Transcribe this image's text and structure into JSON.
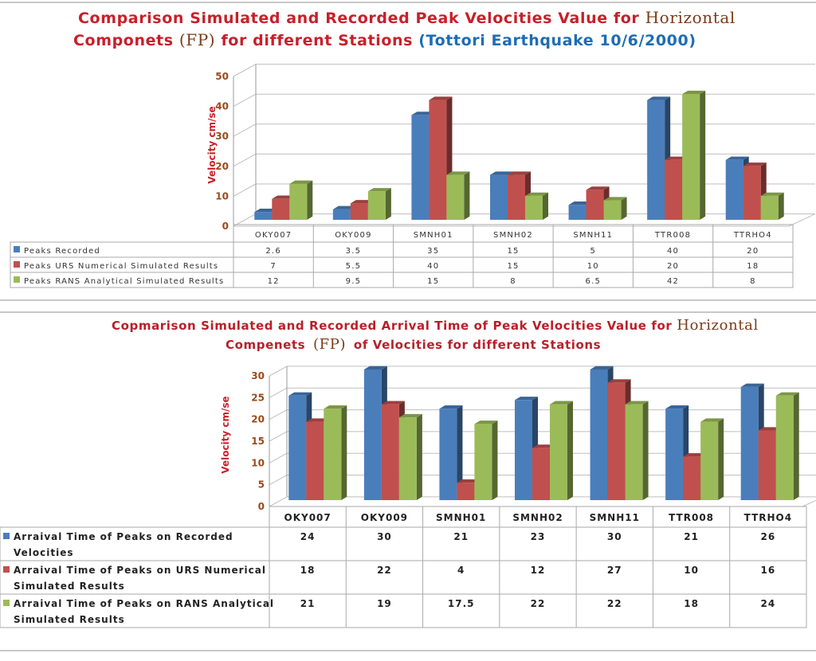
{
  "top_chart": {
    "title_line1_red": "Comparison Simulated and Recorded Peak Velocities Value for",
    "title_line1_serif": "Horizontal",
    "title_line2_red_a": "Componets",
    "title_line2_serif": "(FP)",
    "title_line2_red_b": "for different  Stations",
    "title_line2_blue": "(Tottori Earthquake 10/6/2000)"
  },
  "bottom_chart": {
    "title_line1_red": "Copmarison Simulated and Recorded Arrival Time of Peak Velocities Value for",
    "title_line1_serif": "Horizontal",
    "title_line2_red_a": "Compenets",
    "title_line2_serif": "(FP)",
    "title_line2_red_b": "of Velocities for different Stations"
  },
  "colors": {
    "recorded": "#4a7ebb",
    "urs": "#c0504d",
    "rans": "#9bbb59"
  },
  "chart_data": [
    {
      "type": "bar",
      "title": "Comparison Simulated and Recorded Peak Velocities Value for Horizontal Componets (FP) for different Stations (Tottori Earthquake 10/6/2000)",
      "xlabel": "",
      "ylabel": "Velocity  cm/se",
      "ylim": [
        0,
        50
      ],
      "yticks": [
        "0",
        "10",
        "20",
        "30",
        "40",
        "50"
      ],
      "grid": true,
      "legend": "data-table-left",
      "categories": [
        "OKY007",
        "OKY009",
        "SMNH01",
        "SMNH02",
        "SMNH11",
        "TTR008",
        "TTRHO4"
      ],
      "series": [
        {
          "name": "Peaks Recorded",
          "values": [
            2.6,
            3.5,
            35,
            15,
            5,
            40,
            20
          ],
          "labels": [
            "2.6",
            "3.5",
            "35",
            "15",
            "5",
            "40",
            "20"
          ]
        },
        {
          "name": "Peaks URS Numerical Simulated Results",
          "values": [
            7,
            5.5,
            40,
            15,
            10,
            20,
            18
          ],
          "labels": [
            "7",
            "5.5",
            "40",
            "15",
            "10",
            "20",
            "18"
          ]
        },
        {
          "name": "Peaks RANS Analytical Simulated Results",
          "values": [
            12,
            9.5,
            15,
            8,
            6.5,
            42,
            8
          ],
          "labels": [
            "12",
            "9.5",
            "15",
            "8",
            "6.5",
            "42",
            "8"
          ]
        }
      ]
    },
    {
      "type": "bar",
      "title": "Copmarison Simulated and Recorded Arrival Time of Peak Velocities Value for Horizontal Compenets (FP) of Velocities for different Stations",
      "xlabel": "",
      "ylabel": "Velocity cm/se",
      "ylim": [
        0,
        30
      ],
      "yticks": [
        "0",
        "5",
        "10",
        "15",
        "20",
        "25",
        "30"
      ],
      "grid": true,
      "legend": "data-table-left",
      "categories": [
        "OKY007",
        "OKY009",
        "SMNH01",
        "SMNH02",
        "SMNH11",
        "TTR008",
        "TTRHO4"
      ],
      "series": [
        {
          "name": "Arraival Time  of Peaks on Recorded Velocities",
          "name_lines": [
            "Arraival Time  of Peaks on Recorded",
            "Velocities"
          ],
          "values": [
            24,
            30,
            21,
            23,
            30,
            21,
            26
          ],
          "labels": [
            "24",
            "30",
            "21",
            "23",
            "30",
            "21",
            "26"
          ]
        },
        {
          "name": "Arraival Time of Peaks on URS Numerical Simulated Results",
          "name_lines": [
            "Arraival Time of Peaks on URS Numerical",
            "Simulated Results"
          ],
          "values": [
            18,
            22,
            4,
            12,
            27,
            10,
            16
          ],
          "labels": [
            "18",
            "22",
            "4",
            "12",
            "27",
            "10",
            "16"
          ]
        },
        {
          "name": "Arraival Time of Peaks on RANS Analytical Simulated Results",
          "name_lines": [
            "Arraival Time of Peaks on RANS Analytical",
            "Simulated Results"
          ],
          "values": [
            21,
            19,
            17.5,
            22,
            22,
            18,
            24
          ],
          "labels": [
            "21",
            "19",
            "17.5",
            "22",
            "22",
            "18",
            "24"
          ]
        }
      ]
    }
  ]
}
